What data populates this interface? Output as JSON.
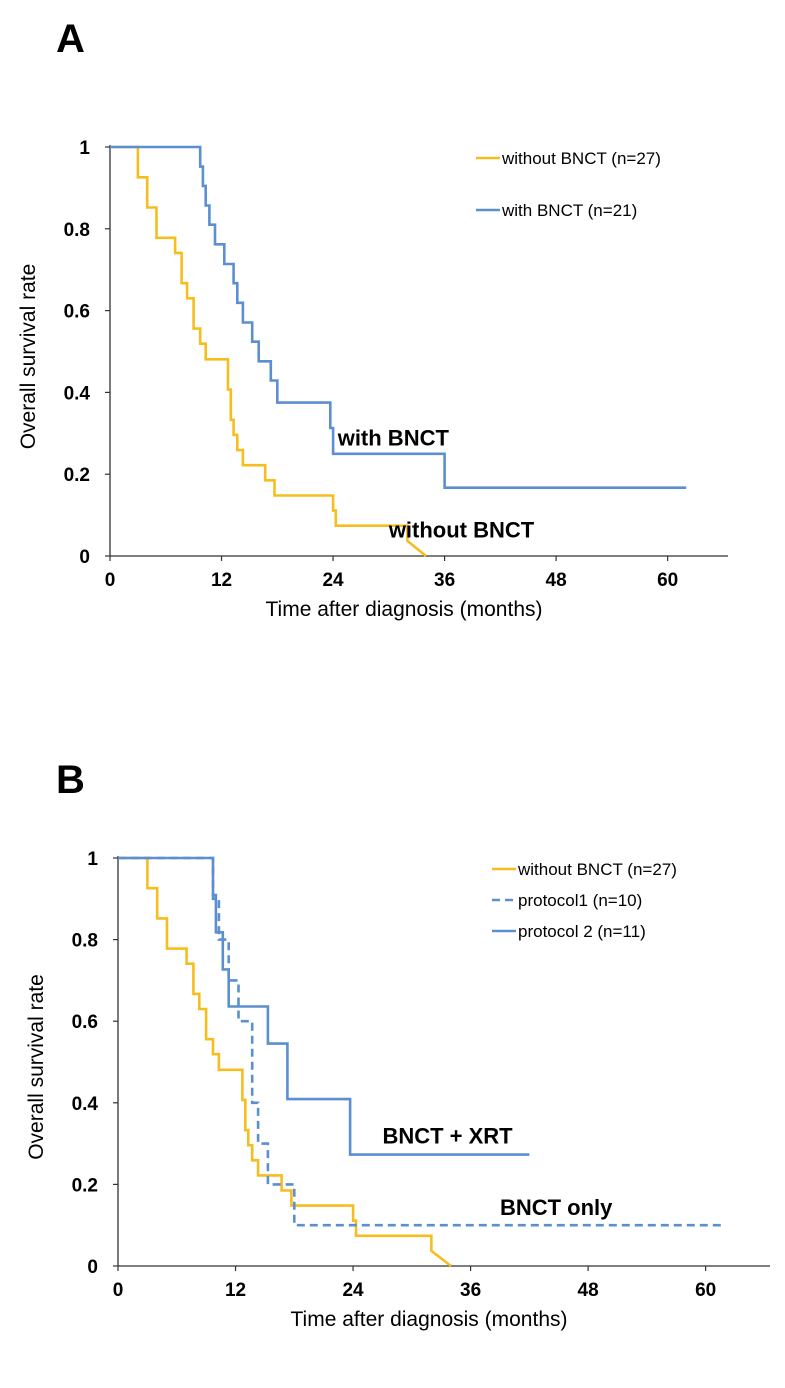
{
  "colors": {
    "without": "#F5BE1E",
    "with": "#5B8FD0",
    "axis": "#333333"
  },
  "chart_data": [
    {
      "panel": "A",
      "type": "line",
      "title": "",
      "xlabel": "Time after diagnosis (months)",
      "ylabel": "Overall survival rate",
      "xlim": [
        0,
        65
      ],
      "ylim": [
        0,
        1
      ],
      "xticks": [
        "0",
        "12",
        "24",
        "36",
        "48",
        "60"
      ],
      "yticks": [
        "0",
        "0.2",
        "0.4",
        "0.6",
        "0.8",
        "1"
      ],
      "series": [
        {
          "name": "without BNCT (n=27)",
          "color": "#F5BE1E",
          "dash": false,
          "x": [
            0,
            3,
            3,
            4,
            4,
            5,
            5,
            7,
            7,
            7.7,
            7.7,
            8.3,
            8.3,
            9,
            9,
            9.7,
            9.7,
            10.3,
            10.3,
            11,
            11,
            12.7,
            12.7,
            13,
            13,
            13.3,
            13.3,
            13.7,
            13.7,
            14.3,
            14.3,
            16.7,
            16.7,
            17.7,
            17.7,
            24,
            24,
            24.3,
            24.3,
            32,
            32,
            34
          ],
          "y": [
            1,
            1,
            0.926,
            0.926,
            0.852,
            0.852,
            0.778,
            0.778,
            0.741,
            0.741,
            0.667,
            0.667,
            0.63,
            0.63,
            0.556,
            0.556,
            0.519,
            0.519,
            0.481,
            0.481,
            0.481,
            0.481,
            0.407,
            0.407,
            0.333,
            0.333,
            0.296,
            0.296,
            0.259,
            0.259,
            0.222,
            0.222,
            0.185,
            0.185,
            0.148,
            0.148,
            0.111,
            0.111,
            0.074,
            0.074,
            0.037,
            0
          ]
        },
        {
          "name": "with BNCT (n=21)",
          "color": "#5B8FD0",
          "dash": false,
          "x": [
            0,
            9.7,
            9.7,
            10,
            10,
            10.3,
            10.3,
            10.7,
            10.7,
            11.3,
            11.3,
            12.3,
            12.3,
            13.3,
            13.3,
            13.7,
            13.7,
            14.3,
            14.3,
            15.3,
            15.3,
            16,
            16,
            17.3,
            17.3,
            18,
            18,
            23.7,
            23.7,
            24,
            24,
            36,
            36,
            62
          ],
          "y": [
            1,
            1,
            0.952,
            0.952,
            0.905,
            0.905,
            0.857,
            0.857,
            0.81,
            0.81,
            0.762,
            0.762,
            0.714,
            0.714,
            0.667,
            0.667,
            0.619,
            0.619,
            0.571,
            0.571,
            0.524,
            0.524,
            0.476,
            0.476,
            0.429,
            0.429,
            0.375,
            0.375,
            0.313,
            0.313,
            0.25,
            0.25,
            0.167,
            0.167
          ]
        }
      ],
      "annotations": [
        {
          "text": "with BNCT",
          "x": 24.5,
          "y": 0.27
        },
        {
          "text": "without BNCT",
          "x": 30,
          "y": 0.045
        }
      ],
      "legend": "top-right"
    },
    {
      "panel": "B",
      "type": "line",
      "title": "",
      "xlabel": "Time after diagnosis (months)",
      "ylabel": "Overall survival rate",
      "xlim": [
        0,
        64
      ],
      "ylim": [
        0,
        1
      ],
      "xticks": [
        "0",
        "12",
        "24",
        "36",
        "48",
        "60"
      ],
      "yticks": [
        "0",
        "0.2",
        "0.4",
        "0.6",
        "0.8",
        "1"
      ],
      "series": [
        {
          "name": "without BNCT (n=27)",
          "color": "#F5BE1E",
          "dash": false,
          "x": [
            0,
            3,
            3,
            4,
            4,
            5,
            5,
            7,
            7,
            7.7,
            7.7,
            8.3,
            8.3,
            9,
            9,
            9.7,
            9.7,
            10.3,
            10.3,
            11,
            11,
            12.7,
            12.7,
            13,
            13,
            13.3,
            13.3,
            13.7,
            13.7,
            14.3,
            14.3,
            16.7,
            16.7,
            17.7,
            17.7,
            24,
            24,
            24.3,
            24.3,
            32,
            32,
            34
          ],
          "y": [
            1,
            1,
            0.926,
            0.926,
            0.852,
            0.852,
            0.778,
            0.778,
            0.741,
            0.741,
            0.667,
            0.667,
            0.63,
            0.63,
            0.556,
            0.556,
            0.519,
            0.519,
            0.481,
            0.481,
            0.481,
            0.481,
            0.407,
            0.407,
            0.333,
            0.333,
            0.296,
            0.296,
            0.259,
            0.259,
            0.222,
            0.222,
            0.185,
            0.185,
            0.148,
            0.148,
            0.111,
            0.111,
            0.074,
            0.074,
            0.037,
            0
          ]
        },
        {
          "name": "protocol1 (n=10)",
          "color": "#5B8FD0",
          "dash": true,
          "x": [
            0,
            9.7,
            9.7,
            10.3,
            10.3,
            11.3,
            11.3,
            12.3,
            12.3,
            13.7,
            13.7,
            14.3,
            14.3,
            15.3,
            15.3,
            18,
            18,
            36,
            36,
            62
          ],
          "y": [
            1,
            1,
            0.9,
            0.9,
            0.8,
            0.8,
            0.7,
            0.7,
            0.6,
            0.6,
            0.4,
            0.4,
            0.3,
            0.3,
            0.2,
            0.2,
            0.1,
            0.1,
            0.1,
            0.1
          ]
        },
        {
          "name": "protocol 2 (n=11)",
          "color": "#5B8FD0",
          "dash": false,
          "x": [
            0,
            9.7,
            9.7,
            10,
            10,
            10.7,
            10.7,
            11.3,
            11.3,
            15.3,
            15.3,
            17.3,
            17.3,
            23.7,
            23.7,
            24.3,
            24.3,
            42
          ],
          "y": [
            1,
            1,
            0.909,
            0.909,
            0.818,
            0.818,
            0.727,
            0.727,
            0.636,
            0.636,
            0.545,
            0.545,
            0.409,
            0.409,
            0.273,
            0.273,
            0.273,
            0.273
          ]
        }
      ],
      "annotations": [
        {
          "text": "BNCT + XRT",
          "x": 27,
          "y": 0.3
        },
        {
          "text": "BNCT only",
          "x": 39,
          "y": 0.125
        }
      ],
      "legend": "top-right"
    }
  ]
}
